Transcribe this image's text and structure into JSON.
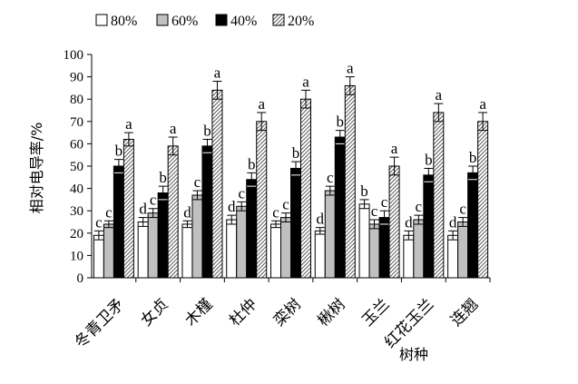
{
  "chart_data": {
    "type": "bar",
    "ylabel": "相对电导率/%",
    "xlabel": "树种",
    "ylim": [
      0,
      100
    ],
    "yticks": [
      0,
      10,
      20,
      30,
      40,
      50,
      60,
      70,
      80,
      90,
      100
    ],
    "categories": [
      "冬青卫矛",
      "女贞",
      "木槿",
      "杜仲",
      "栾树",
      "楸树",
      "玉兰",
      "红花玉兰",
      "连翘"
    ],
    "series": [
      {
        "name": "80%",
        "fill": "white",
        "values": [
          19,
          25,
          24,
          26,
          24,
          21,
          33,
          19,
          19
        ],
        "errors": [
          2,
          2,
          1.5,
          2,
          1.5,
          1.5,
          2,
          2,
          2
        ],
        "labels": [
          "c",
          "d",
          "d",
          "d",
          "c",
          "d",
          "b",
          "d",
          "d"
        ]
      },
      {
        "name": "60%",
        "fill": "gray",
        "values": [
          24,
          29,
          37,
          32,
          27,
          39,
          24,
          26,
          25
        ],
        "errors": [
          1.5,
          2,
          2,
          2,
          2,
          2,
          2,
          2,
          2
        ],
        "labels": [
          "c",
          "c",
          "c",
          "c",
          "c",
          "c",
          "c",
          "c",
          "c"
        ]
      },
      {
        "name": "40%",
        "fill": "black",
        "values": [
          50,
          38,
          59,
          44,
          49,
          63,
          27,
          46,
          47
        ],
        "errors": [
          3,
          3,
          3,
          3,
          3,
          3,
          3,
          3,
          3
        ],
        "labels": [
          "b",
          "b",
          "b",
          "b",
          "b",
          "b",
          "c",
          "b",
          "b"
        ]
      },
      {
        "name": "20%",
        "fill": "hatch",
        "values": [
          62,
          59,
          84,
          70,
          80,
          86,
          50,
          74,
          70
        ],
        "errors": [
          3,
          4,
          4,
          4,
          4,
          4,
          4,
          4,
          4
        ],
        "labels": [
          "a",
          "a",
          "a",
          "a",
          "a",
          "a",
          "a",
          "a",
          "a"
        ]
      }
    ],
    "legend_position": "top",
    "grid": false
  }
}
